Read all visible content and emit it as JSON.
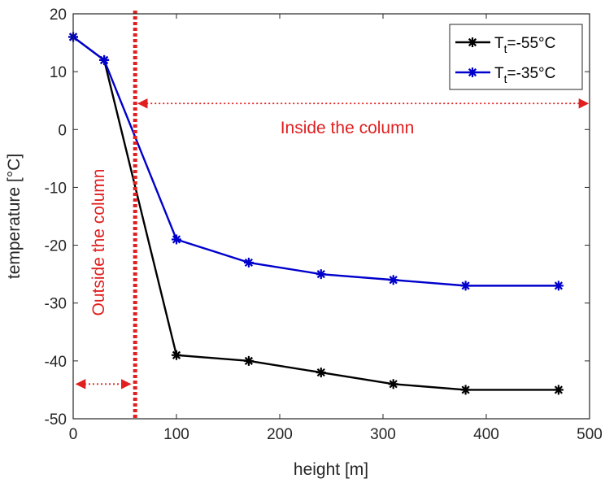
{
  "chart_data": {
    "type": "line",
    "xlabel": "height [m]",
    "ylabel": "temperature [°C]",
    "xlim": [
      0,
      500
    ],
    "ylim": [
      -50,
      20
    ],
    "x_ticks": [
      "0",
      "100",
      "200",
      "300",
      "400",
      "500"
    ],
    "y_ticks": [
      "20",
      "10",
      "0",
      "-10",
      "-20",
      "-30",
      "-40",
      "-50"
    ],
    "x_tick_values": [
      0,
      100,
      200,
      300,
      400,
      500
    ],
    "y_tick_values": [
      20,
      10,
      0,
      -10,
      -20,
      -30,
      -40,
      -50
    ],
    "grid": false,
    "legend_position": "top-right",
    "series": [
      {
        "name_main": "T",
        "name_sub": "t",
        "name_rest": "=-55°C",
        "color": "#000000",
        "x": [
          0,
          30,
          100,
          170,
          240,
          310,
          380,
          470
        ],
        "y": [
          16,
          12,
          -39,
          -40,
          -42,
          -44,
          -45,
          -45
        ]
      },
      {
        "name_main": "T",
        "name_sub": "t",
        "name_rest": "=-35°C",
        "color": "#0000cc",
        "x": [
          0,
          30,
          100,
          170,
          240,
          310,
          380,
          470
        ],
        "y": [
          16,
          12,
          -19,
          -23,
          -25,
          -26,
          -27,
          -27
        ]
      }
    ],
    "annotations": {
      "inside": "Inside the column",
      "outside": "Outside the column",
      "boundary_x": 60,
      "inside_arrow": {
        "x_from": 60,
        "x_to": 500,
        "y": 4.5
      },
      "outside_arrow": {
        "x_from": 0,
        "x_to": 60,
        "y": -44
      },
      "color": "#e02020"
    }
  }
}
